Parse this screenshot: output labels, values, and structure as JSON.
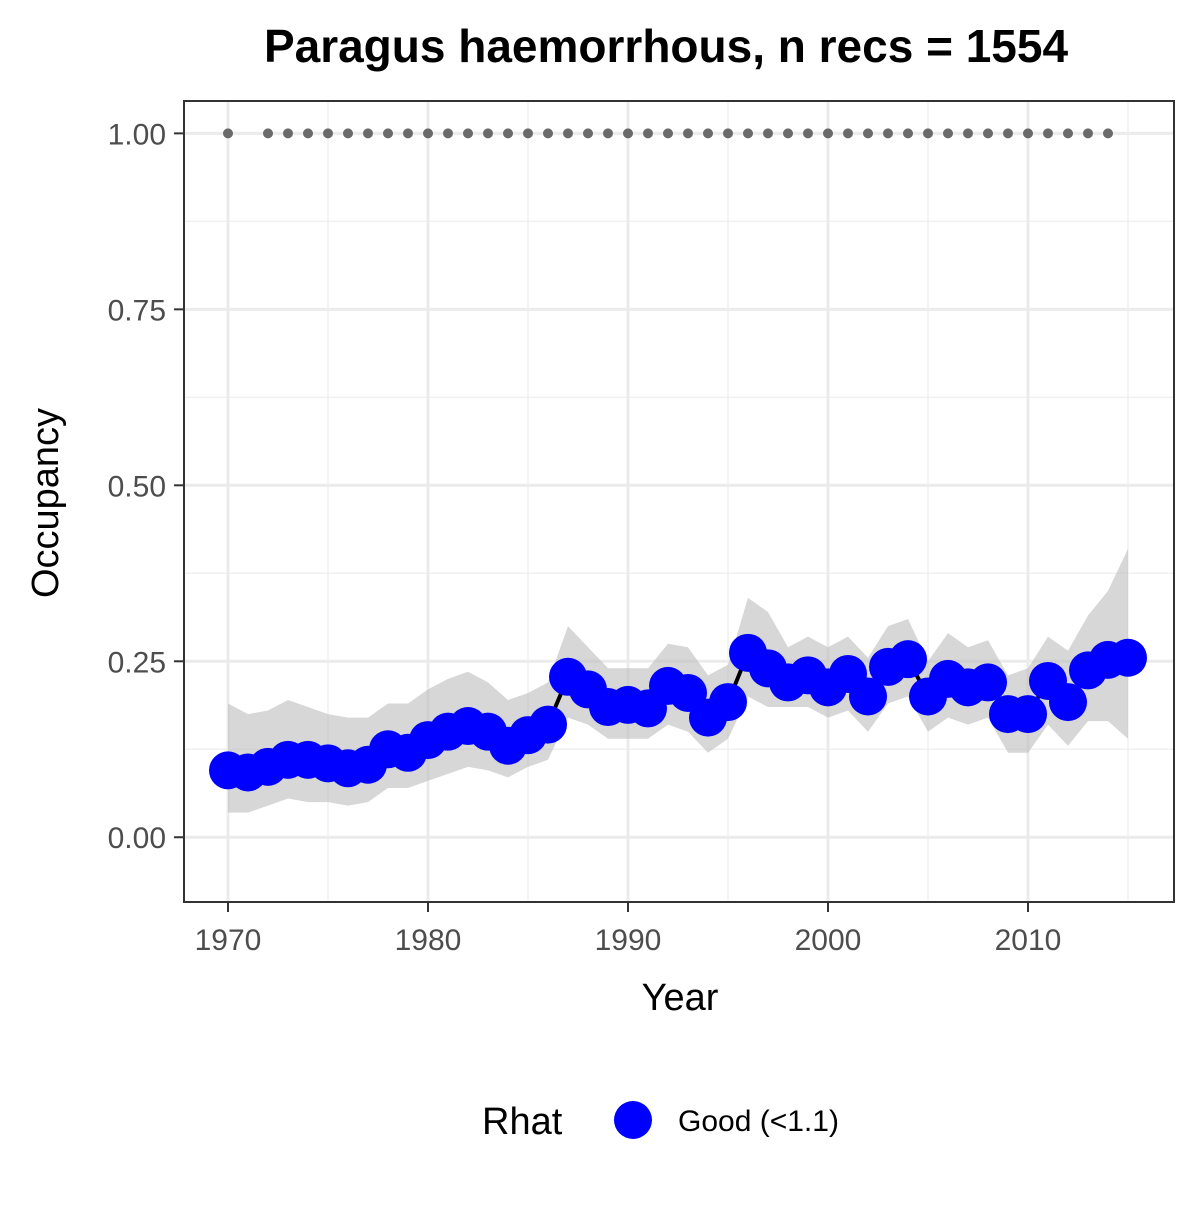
{
  "chart_data": {
    "type": "line",
    "title": "Paragus haemorrhous, n recs = 1554",
    "xlabel": "Year",
    "ylabel": "Occupancy",
    "xlim": [
      1967.8,
      2017.3
    ],
    "ylim": [
      -0.092,
      1.046
    ],
    "xticks": [
      1970,
      1980,
      1990,
      2000,
      2010
    ],
    "xtick_labels": [
      "1970",
      "1980",
      "1990",
      "2000",
      "2010"
    ],
    "yticks": [
      0.0,
      0.25,
      0.5,
      0.75,
      1.0
    ],
    "ytick_labels": [
      "0.00",
      "0.25",
      "0.50",
      "0.75",
      "1.00"
    ],
    "grid": true,
    "legend_position": "bottom",
    "legend": {
      "title": "Rhat",
      "entries": [
        {
          "label": "Good (<1.1)",
          "color": "#0000ff"
        }
      ]
    },
    "colors": {
      "points": "#0000ff",
      "line": "#000000",
      "ribbon": "#bdbdbd",
      "rug": "#6b6b6b"
    },
    "series": [
      {
        "name": "Good (<1.1)",
        "x": [
          1970,
          1971,
          1972,
          1973,
          1974,
          1975,
          1976,
          1977,
          1978,
          1979,
          1980,
          1981,
          1982,
          1983,
          1984,
          1985,
          1986,
          1987,
          1988,
          1989,
          1990,
          1991,
          1992,
          1993,
          1994,
          1995,
          1996,
          1997,
          1998,
          1999,
          2000,
          2001,
          2002,
          2003,
          2004,
          2005,
          2006,
          2007,
          2008,
          2009,
          2010,
          2011,
          2012,
          2013,
          2014,
          2015
        ],
        "y": [
          0.095,
          0.092,
          0.1,
          0.11,
          0.11,
          0.105,
          0.098,
          0.103,
          0.125,
          0.12,
          0.138,
          0.15,
          0.158,
          0.15,
          0.13,
          0.145,
          0.16,
          0.228,
          0.21,
          0.185,
          0.188,
          0.183,
          0.215,
          0.205,
          0.17,
          0.192,
          0.262,
          0.24,
          0.22,
          0.23,
          0.213,
          0.232,
          0.2,
          0.242,
          0.253,
          0.2,
          0.225,
          0.213,
          0.22,
          0.175,
          0.175,
          0.222,
          0.192,
          0.237,
          0.252,
          0.255
        ],
        "lower": [
          0.035,
          0.035,
          0.045,
          0.055,
          0.05,
          0.05,
          0.045,
          0.05,
          0.07,
          0.07,
          0.08,
          0.09,
          0.1,
          0.095,
          0.085,
          0.1,
          0.11,
          0.17,
          0.16,
          0.14,
          0.14,
          0.14,
          0.16,
          0.15,
          0.12,
          0.14,
          0.2,
          0.185,
          0.185,
          0.185,
          0.17,
          0.18,
          0.15,
          0.19,
          0.2,
          0.15,
          0.17,
          0.16,
          0.17,
          0.12,
          0.12,
          0.16,
          0.13,
          0.165,
          0.165,
          0.14
        ],
        "upper": [
          0.19,
          0.175,
          0.18,
          0.195,
          0.185,
          0.175,
          0.17,
          0.17,
          0.19,
          0.19,
          0.21,
          0.225,
          0.235,
          0.22,
          0.195,
          0.205,
          0.22,
          0.3,
          0.27,
          0.24,
          0.24,
          0.24,
          0.275,
          0.27,
          0.23,
          0.245,
          0.34,
          0.32,
          0.27,
          0.285,
          0.27,
          0.285,
          0.255,
          0.3,
          0.31,
          0.25,
          0.29,
          0.27,
          0.28,
          0.23,
          0.24,
          0.285,
          0.265,
          0.315,
          0.35,
          0.41
        ]
      }
    ],
    "rug": {
      "y": 1.0,
      "x": [
        1970,
        1972,
        1973,
        1974,
        1975,
        1976,
        1977,
        1978,
        1979,
        1980,
        1981,
        1982,
        1983,
        1984,
        1985,
        1986,
        1987,
        1988,
        1989,
        1990,
        1991,
        1992,
        1993,
        1994,
        1995,
        1996,
        1997,
        1998,
        1999,
        2000,
        2001,
        2002,
        2003,
        2004,
        2005,
        2006,
        2007,
        2008,
        2009,
        2010,
        2011,
        2012,
        2013,
        2014
      ]
    }
  }
}
